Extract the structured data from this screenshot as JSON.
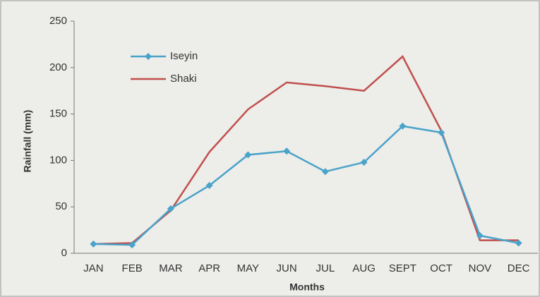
{
  "chart_data": {
    "type": "line",
    "x_label": "Months",
    "y_label": "Rainfall (mm)",
    "categories": [
      "JAN",
      "FEB",
      "MAR",
      "APR",
      "MAY",
      "JUN",
      "JUL",
      "AUG",
      "SEPT",
      "OCT",
      "NOV",
      "DEC"
    ],
    "series": [
      {
        "name": "Iseyin",
        "color": "#4aa3c9",
        "marker": "diamond",
        "values": [
          10,
          9,
          48,
          73,
          106,
          110,
          88,
          98,
          137,
          130,
          19,
          11
        ]
      },
      {
        "name": "Shaki",
        "color": "#c0504d",
        "marker": "none",
        "values": [
          10,
          11,
          46,
          109,
          155,
          184,
          180,
          175,
          212,
          132,
          14,
          14
        ]
      }
    ],
    "ylim": [
      0,
      250
    ],
    "yticks": [
      0,
      50,
      100,
      150,
      200,
      250
    ],
    "grid": false,
    "legend": "upper left"
  }
}
